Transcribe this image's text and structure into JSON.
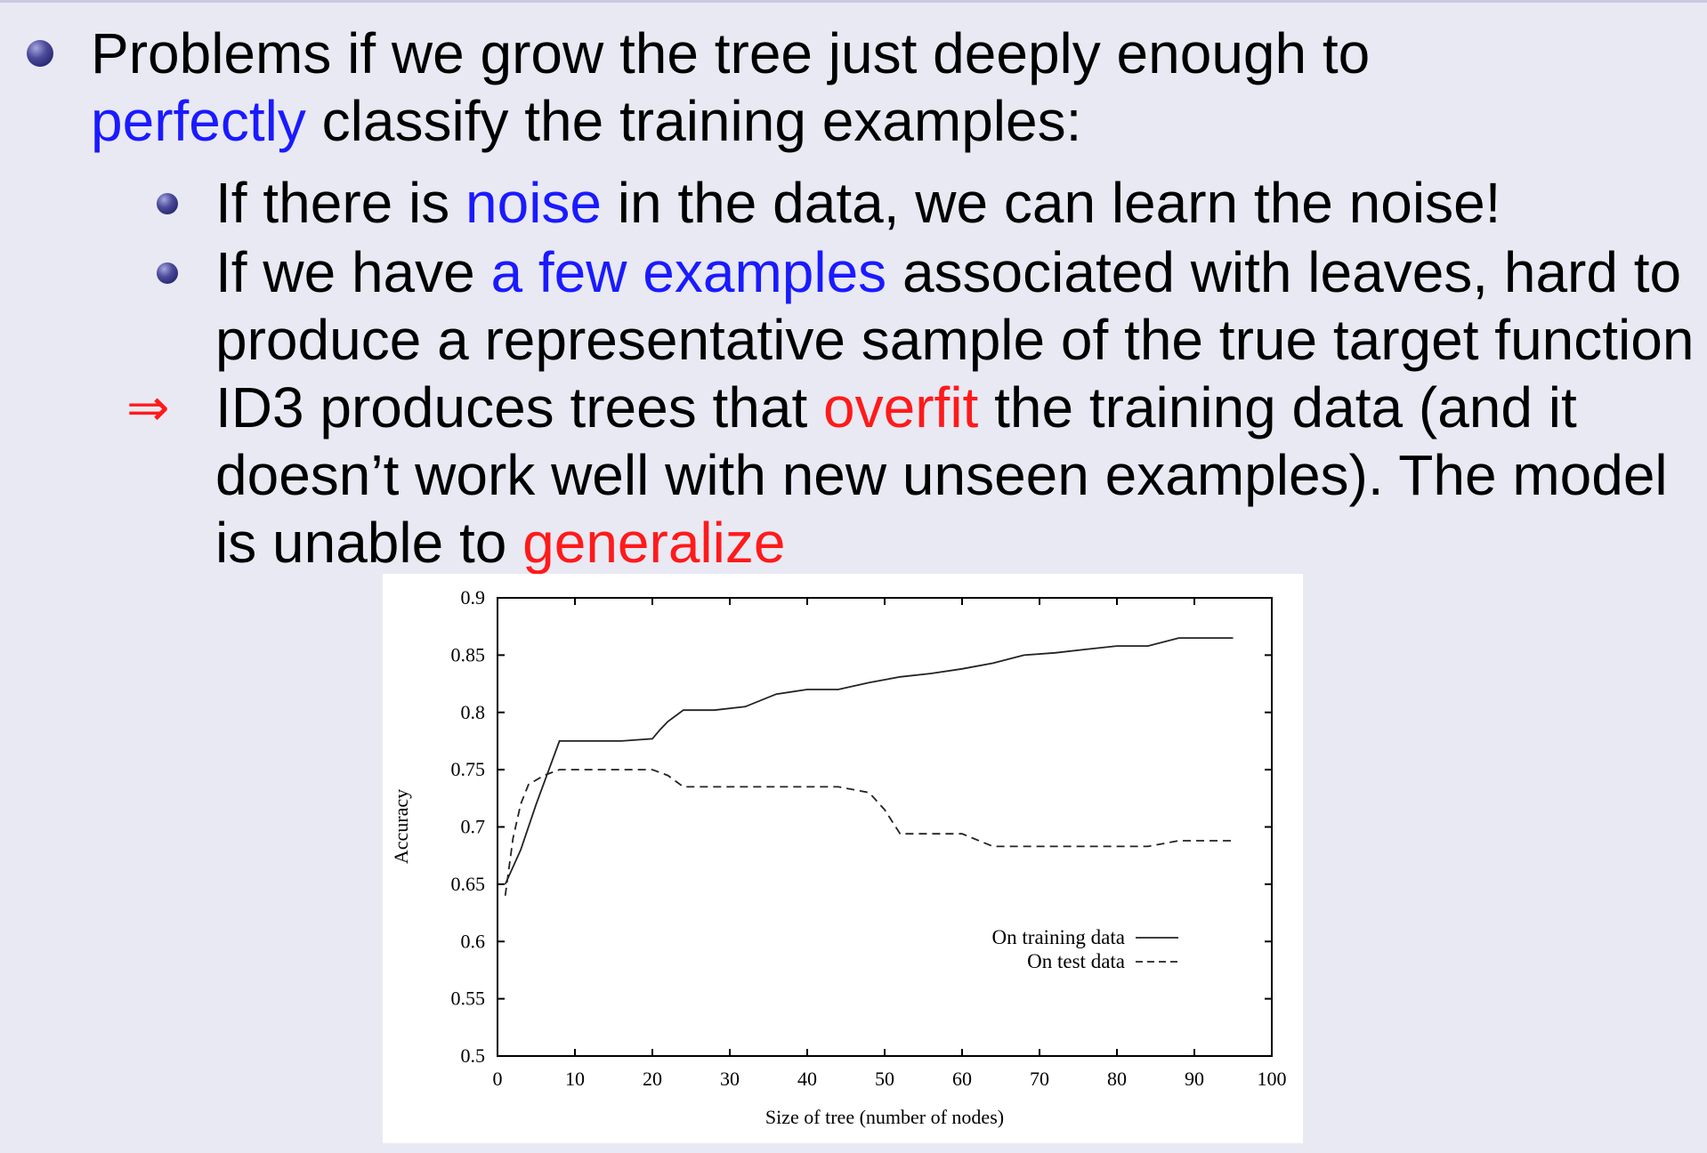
{
  "bullets": {
    "main": {
      "line1": "Problems if we grow the tree just deeply enough to",
      "line2_highlight": "perfectly",
      "line2_rest": " classify the training examples:"
    },
    "sub1": {
      "pre": "If there is ",
      "highlight": "noise",
      "post": " in the data, we can learn the noise!"
    },
    "sub2": {
      "pre": "If we have ",
      "highlight": "a few examples",
      "post": " associated with leaves, hard to",
      "line2": "produce a representative sample of the true target function"
    },
    "conclusion": {
      "arrow": "⇒",
      "pre": "ID3 produces trees that ",
      "highlight": "overfit",
      "post": " the training data (and it",
      "line2": "doesn’t work well with new unseen examples). The model",
      "line3_pre": "is unable to ",
      "line3_highlight": "generalize"
    }
  },
  "chart_data": {
    "type": "line",
    "title": "",
    "xlabel": "Size of tree (number of nodes)",
    "ylabel": "Accuracy",
    "xlim": [
      0,
      100
    ],
    "ylim": [
      0.5,
      0.9
    ],
    "xticks": [
      "0",
      "10",
      "20",
      "30",
      "40",
      "50",
      "60",
      "70",
      "80",
      "90",
      "100"
    ],
    "yticks": [
      "0.5",
      "0.55",
      "0.6",
      "0.65",
      "0.7",
      "0.75",
      "0.8",
      "0.85",
      "0.9"
    ],
    "legend_position": "right",
    "series": [
      {
        "name": "On training data",
        "style": "solid",
        "points": [
          [
            1,
            0.65
          ],
          [
            3,
            0.68
          ],
          [
            5,
            0.72
          ],
          [
            8,
            0.775
          ],
          [
            10,
            0.775
          ],
          [
            14,
            0.775
          ],
          [
            16,
            0.775
          ],
          [
            18,
            0.776
          ],
          [
            20,
            0.777
          ],
          [
            21,
            0.785
          ],
          [
            22,
            0.792
          ],
          [
            24,
            0.802
          ],
          [
            28,
            0.802
          ],
          [
            32,
            0.805
          ],
          [
            36,
            0.816
          ],
          [
            40,
            0.82
          ],
          [
            44,
            0.82
          ],
          [
            48,
            0.826
          ],
          [
            52,
            0.831
          ],
          [
            56,
            0.834
          ],
          [
            60,
            0.838
          ],
          [
            64,
            0.843
          ],
          [
            68,
            0.85
          ],
          [
            72,
            0.852
          ],
          [
            76,
            0.855
          ],
          [
            80,
            0.858
          ],
          [
            84,
            0.858
          ],
          [
            88,
            0.865
          ],
          [
            92,
            0.865
          ],
          [
            95,
            0.865
          ]
        ]
      },
      {
        "name": "On test data",
        "style": "dashed",
        "points": [
          [
            1,
            0.64
          ],
          [
            2,
            0.69
          ],
          [
            3,
            0.72
          ],
          [
            4,
            0.737
          ],
          [
            6,
            0.745
          ],
          [
            8,
            0.75
          ],
          [
            12,
            0.75
          ],
          [
            16,
            0.75
          ],
          [
            20,
            0.75
          ],
          [
            22,
            0.745
          ],
          [
            24,
            0.735
          ],
          [
            28,
            0.735
          ],
          [
            32,
            0.735
          ],
          [
            36,
            0.735
          ],
          [
            40,
            0.735
          ],
          [
            44,
            0.735
          ],
          [
            48,
            0.73
          ],
          [
            50,
            0.715
          ],
          [
            52,
            0.694
          ],
          [
            56,
            0.694
          ],
          [
            60,
            0.694
          ],
          [
            64,
            0.683
          ],
          [
            68,
            0.683
          ],
          [
            72,
            0.683
          ],
          [
            76,
            0.683
          ],
          [
            80,
            0.683
          ],
          [
            84,
            0.683
          ],
          [
            88,
            0.688
          ],
          [
            92,
            0.688
          ],
          [
            95,
            0.688
          ]
        ]
      }
    ]
  }
}
